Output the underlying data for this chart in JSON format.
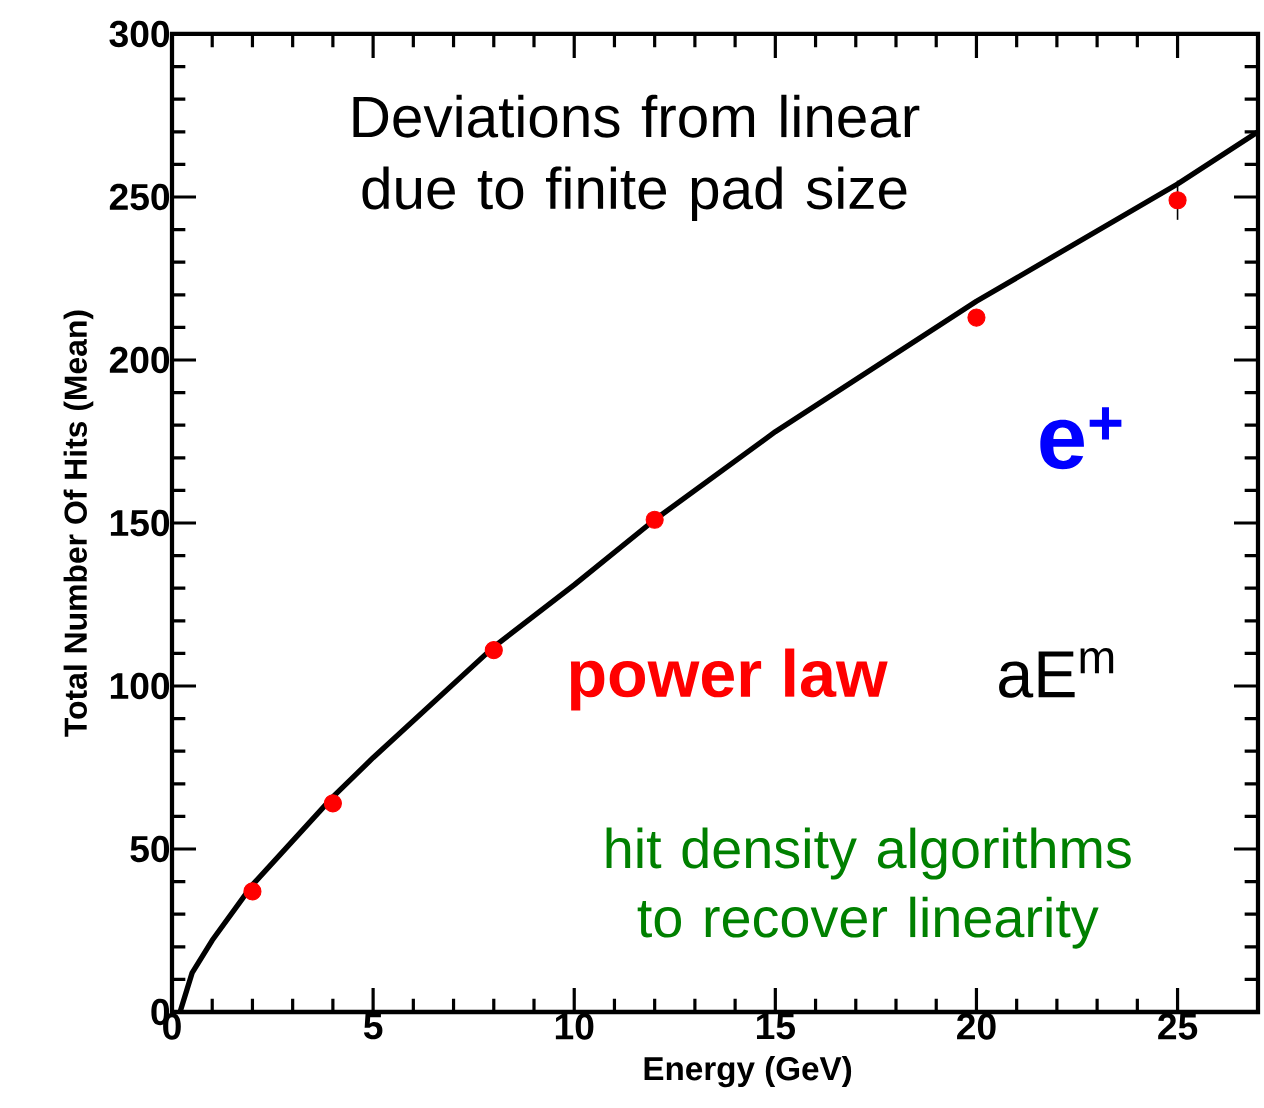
{
  "chart_data": {
    "type": "scatter",
    "xlabel": "Energy (GeV)",
    "ylabel": "Total Number Of Hits (Mean)",
    "xlim": [
      0,
      27
    ],
    "ylim": [
      0,
      300
    ],
    "xticks": [
      0,
      5,
      10,
      15,
      20,
      25
    ],
    "yticks": [
      0,
      50,
      100,
      150,
      200,
      250,
      300
    ],
    "annotations": [
      "Deviations from linear due to finite pad size",
      "e$^{+}$",
      "power law",
      "aE$^{m}$",
      "hit density algorithms to recover linearity"
    ],
    "series": [
      {
        "type": "scatter",
        "marker": "circle",
        "color": "#ff0000",
        "x": [
          2,
          4,
          8,
          12,
          20,
          25
        ],
        "values": [
          37,
          64,
          111,
          151,
          213,
          249
        ],
        "errors": [
          null,
          null,
          null,
          null,
          null,
          6
        ]
      },
      {
        "type": "line",
        "color": "#000000",
        "marker": "none",
        "x": [
          0.2,
          0.5,
          1,
          2,
          4,
          5,
          8,
          10,
          12,
          15,
          20,
          25,
          27
        ],
        "values": [
          0,
          12,
          22,
          39,
          66,
          78,
          112,
          131,
          151,
          178,
          218,
          254,
          270
        ]
      }
    ]
  }
}
